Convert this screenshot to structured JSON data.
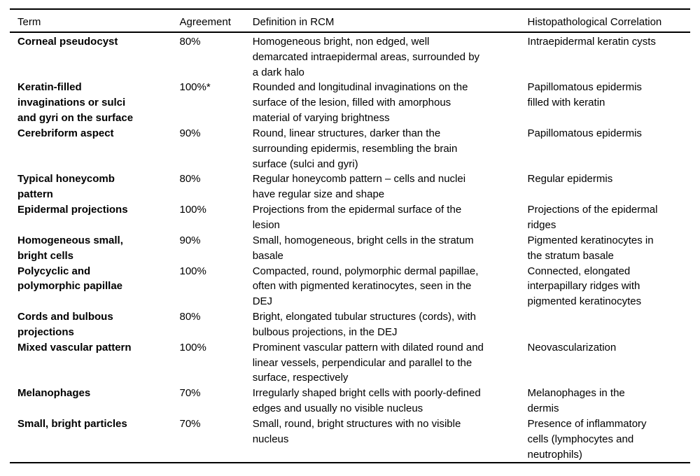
{
  "colors": {
    "text": "#000000",
    "background": "#ffffff",
    "rule": "#000000"
  },
  "table": {
    "columns": {
      "term": "Term",
      "agreement": "Agreement",
      "definition": "Definition in RCM",
      "histopathology": "Histopathological Correlation"
    },
    "rows": [
      {
        "term": "Corneal pseudocyst",
        "agreement": "80%",
        "definition": "Homogeneous bright, non edged, well\ndemarcated intraepidermal areas, surrounded by\na dark halo",
        "histopathology": "Intraepidermal keratin cysts"
      },
      {
        "term": "Keratin-filled\ninvaginations or sulci\nand gyri on the surface",
        "agreement": "100%*",
        "definition": "Rounded and longitudinal invaginations on the\nsurface of the lesion, filled with amorphous\nmaterial of varying brightness",
        "histopathology": "Papillomatous epidermis\nfilled with keratin"
      },
      {
        "term": "Cerebriform aspect",
        "agreement": "90%",
        "definition": "Round, linear structures, darker than the\nsurrounding epidermis, resembling the brain\nsurface (sulci and gyri)",
        "histopathology": "Papillomatous epidermis"
      },
      {
        "term": "Typical honeycomb\npattern",
        "agreement": "80%",
        "definition": "Regular honeycomb pattern – cells and nuclei\nhave regular size and shape",
        "histopathology": "Regular epidermis"
      },
      {
        "term": "Epidermal projections",
        "agreement": "100%",
        "definition": "Projections from the epidermal surface of the\nlesion",
        "histopathology": "Projections of the epidermal\nridges"
      },
      {
        "term": "Homogeneous small,\nbright cells",
        "agreement": "90%",
        "definition": "Small, homogeneous, bright cells in the stratum\nbasale",
        "histopathology": "Pigmented keratinocytes in\nthe stratum basale"
      },
      {
        "term": "Polycyclic and\npolymorphic papillae",
        "agreement": "100%",
        "definition": "Compacted, round, polymorphic dermal papillae,\noften with pigmented keratinocytes, seen in the\nDEJ",
        "histopathology": "Connected, elongated\ninterpapillary ridges with\npigmented keratinocytes"
      },
      {
        "term": "Cords and bulbous\nprojections",
        "agreement": "80%",
        "definition": "Bright, elongated tubular structures (cords), with\nbulbous projections, in the DEJ",
        "histopathology": ""
      },
      {
        "term": "Mixed vascular pattern",
        "agreement": "100%",
        "definition": "Prominent vascular pattern with dilated round and\nlinear vessels, perpendicular and parallel to the\nsurface, respectively",
        "histopathology": "Neovascularization"
      },
      {
        "term": "Melanophages",
        "agreement": "70%",
        "definition": "Irregularly shaped bright cells with poorly-defined\nedges and usually no visible nucleus",
        "histopathology": "Melanophages in the\ndermis"
      },
      {
        "term": "Small, bright particles",
        "agreement": "70%",
        "definition": "Small, round, bright structures with no visible\nnucleus",
        "histopathology": "Presence of inflammatory\ncells (lymphocytes and\nneutrophils)"
      }
    ]
  }
}
